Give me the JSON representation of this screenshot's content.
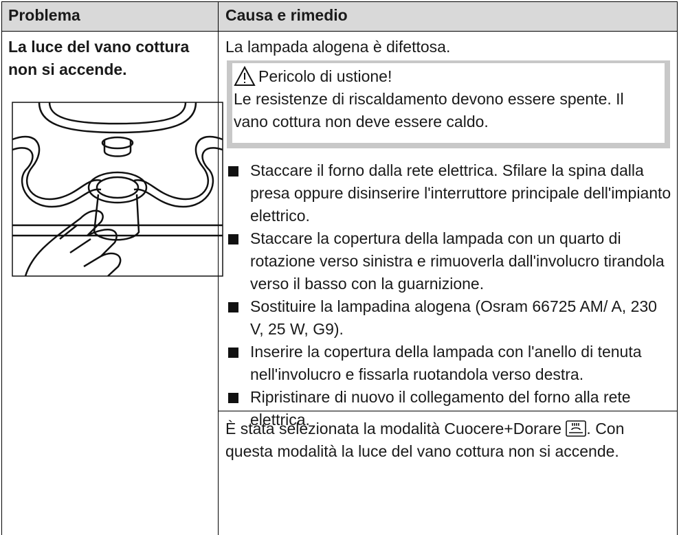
{
  "table": {
    "header": [
      "Problema",
      "Causa e rimedio"
    ],
    "rows": [
      {
        "problem": "La luce del vano cottura non si accende.",
        "causes": [
          {
            "text": "La lampada alogena è difettosa.",
            "warning": {
              "title": "Pericolo di ustione!",
              "text": "Le resistenze di riscaldamento devono essere spente. Il vano cottura non deve essere caldo."
            },
            "steps": [
              "Staccare il forno dalla rete elettrica. Sfilare la spina dalla presa oppure disinserire l'interruttore principale dell'impianto elettrico.",
              "Staccare la copertura della lampada con un quarto di rotazione verso sinistra e rimuoverla dall'involucro tirandola verso il basso con la guarnizione.",
              "Sostituire la lampadina alogena (Osram 66725 AM/ A, 230 V, 25 W, G9).",
              "Inserire la copertura della lampada con l'anello di tenuta nell'involucro e fissarla ruotandola verso destra.",
              "Ripristinare di nuovo il collegamento del forno alla rete elettrica."
            ]
          },
          {
            "text_before": "È stata selezionata la modalità Cuocere+Dorare",
            "text_after": ". Con questa modalità la luce del vano cottura non si accende."
          }
        ]
      }
    ]
  }
}
